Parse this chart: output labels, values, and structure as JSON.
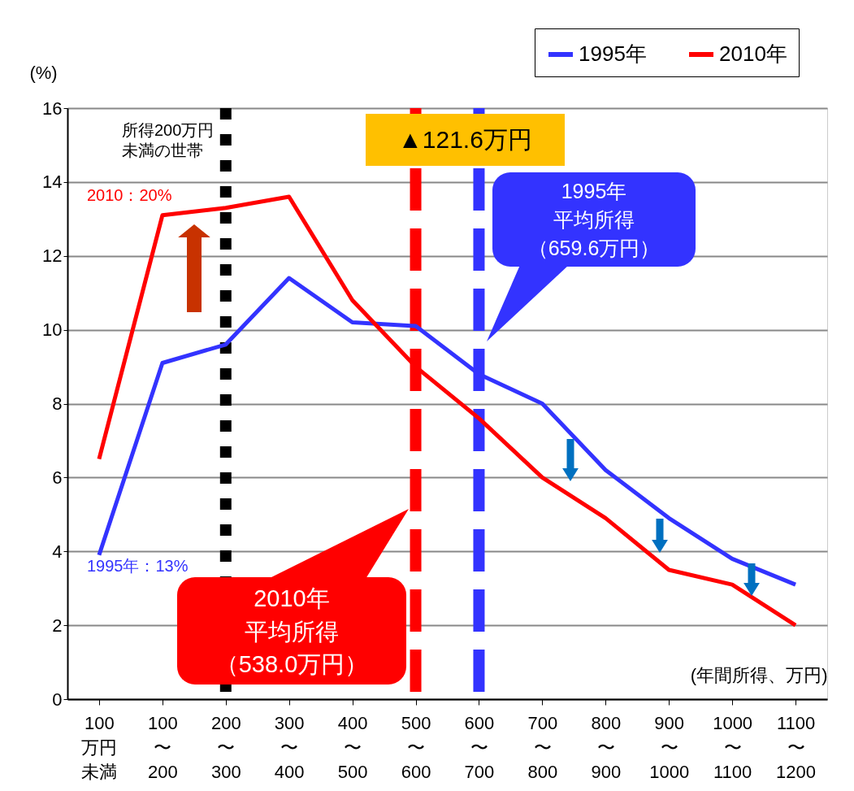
{
  "chart_data": {
    "type": "line",
    "ylabel": "(%)",
    "xlabel": "(年間所得、万円)",
    "categories": [
      "100万円未満",
      "100〜200",
      "200〜300",
      "300〜400",
      "400〜500",
      "500〜600",
      "600〜700",
      "700〜800",
      "800〜900",
      "900〜1000",
      "1000〜1100",
      "1100〜1200"
    ],
    "series": [
      {
        "name": "1995年",
        "color": "#3333ff",
        "values": [
          3.9,
          9.1,
          9.6,
          11.4,
          10.2,
          10.1,
          8.8,
          8.0,
          6.2,
          4.9,
          3.8,
          3.1
        ]
      },
      {
        "name": "2010年",
        "color": "#ff0000",
        "values": [
          6.5,
          13.1,
          13.3,
          13.6,
          10.8,
          9.0,
          7.6,
          6.0,
          4.9,
          3.5,
          3.1,
          2.0
        ]
      }
    ],
    "ylim": [
      0,
      16
    ],
    "yticks": [
      0,
      2,
      4,
      6,
      8,
      10,
      12,
      14,
      16
    ],
    "grid": "y",
    "legend": "top right",
    "ref_lines": [
      {
        "axis": "x",
        "value": "200〜300",
        "label": "所得200万円未満の世帯",
        "color": "#000000",
        "line_style": "dotted"
      },
      {
        "axis": "x",
        "value": "500〜600",
        "label": "2010年平均所得（538.0万円）",
        "color": "#ff0000",
        "line_style": "dashed"
      },
      {
        "axis": "x",
        "value": "600〜700",
        "label": "1995年平均所得（659.6万円）",
        "color": "#3333ff",
        "line_style": "dashed"
      }
    ],
    "annotations": [
      "▲121.6万円",
      "2010：20%",
      "1995年：13%"
    ]
  }
}
